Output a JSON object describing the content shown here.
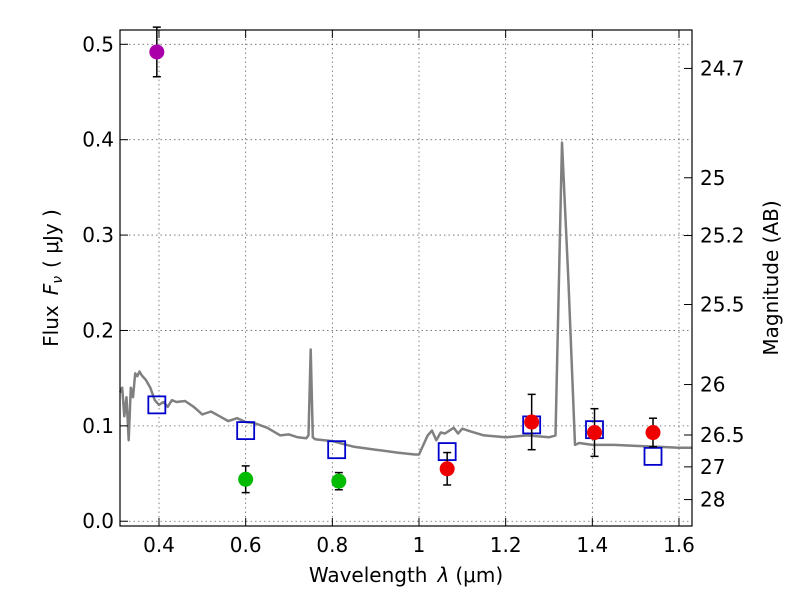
{
  "chart_data": {
    "type": "scatter",
    "xlabel": "Wavelength",
    "xlabel_symbol": "λ",
    "xlabel_unit": "(μm)",
    "ylabel": "Flux",
    "ylabel_symbol": "F",
    "ylabel_sub": "ν",
    "ylabel_unit": "( μJy )",
    "y2label": "Magnitude (AB)",
    "xlim": [
      0.31,
      1.63
    ],
    "ylim": [
      -0.005,
      0.515
    ],
    "grid": true,
    "x_ticks": [
      0.4,
      0.6,
      0.8,
      1.0,
      1.2,
      1.4,
      1.6
    ],
    "x_tick_labels": [
      "0.4",
      "0.6",
      "0.8",
      "1",
      "1.2",
      "1.4",
      "1.6"
    ],
    "y_ticks": [
      0.0,
      0.1,
      0.2,
      0.3,
      0.4,
      0.5
    ],
    "y_tick_labels": [
      "0.0",
      "0.1",
      "0.2",
      "0.3",
      "0.4",
      "0.5"
    ],
    "y2_ticks": [
      {
        "label": "24.7",
        "flux": 0.4747
      },
      {
        "label": "25",
        "flux": 0.3601
      },
      {
        "label": "25.2",
        "flux": 0.2995
      },
      {
        "label": "25.5",
        "flux": 0.2272
      },
      {
        "label": "26",
        "flux": 0.1433
      },
      {
        "label": "26.5",
        "flux": 0.0904
      },
      {
        "label": "27",
        "flux": 0.057
      },
      {
        "label": "28",
        "flux": 0.0227
      }
    ],
    "series": [
      {
        "name": "Model SED",
        "kind": "line",
        "color": "#808080",
        "x": [
          0.31,
          0.315,
          0.32,
          0.325,
          0.33,
          0.335,
          0.34,
          0.345,
          0.35,
          0.355,
          0.36,
          0.37,
          0.38,
          0.39,
          0.4,
          0.41,
          0.42,
          0.43,
          0.44,
          0.46,
          0.48,
          0.5,
          0.52,
          0.54,
          0.56,
          0.58,
          0.6,
          0.62,
          0.65,
          0.68,
          0.7,
          0.72,
          0.74,
          0.745,
          0.75,
          0.755,
          0.76,
          0.8,
          0.85,
          0.9,
          0.95,
          0.99,
          1.0,
          1.02,
          1.03,
          1.04,
          1.05,
          1.06,
          1.08,
          1.09,
          1.1,
          1.12,
          1.15,
          1.2,
          1.25,
          1.3,
          1.315,
          1.33,
          1.345,
          1.36,
          1.37,
          1.4,
          1.45,
          1.5,
          1.55,
          1.6,
          1.63
        ],
        "y": [
          0.135,
          0.14,
          0.11,
          0.13,
          0.085,
          0.14,
          0.13,
          0.155,
          0.152,
          0.157,
          0.153,
          0.148,
          0.14,
          0.127,
          0.122,
          0.125,
          0.12,
          0.127,
          0.125,
          0.126,
          0.12,
          0.112,
          0.115,
          0.11,
          0.105,
          0.108,
          0.104,
          0.103,
          0.098,
          0.09,
          0.091,
          0.088,
          0.087,
          0.09,
          0.18,
          0.088,
          0.086,
          0.084,
          0.078,
          0.075,
          0.072,
          0.07,
          0.07,
          0.09,
          0.095,
          0.085,
          0.093,
          0.092,
          0.098,
          0.092,
          0.097,
          0.094,
          0.09,
          0.088,
          0.09,
          0.088,
          0.09,
          0.397,
          0.25,
          0.08,
          0.082,
          0.08,
          0.08,
          0.079,
          0.078,
          0.077,
          0.077
        ]
      },
      {
        "name": "Model photometry",
        "kind": "open-square",
        "color": "#0000cc",
        "x": [
          0.395,
          0.6,
          0.81,
          1.065,
          1.26,
          1.405,
          1.54
        ],
        "y": [
          0.122,
          0.095,
          0.075,
          0.073,
          0.101,
          0.096,
          0.068
        ]
      },
      {
        "name": "Detections",
        "kind": "filled-circle",
        "color": "#ee0000",
        "x": [
          1.065,
          1.26,
          1.405,
          1.54
        ],
        "y": [
          0.055,
          0.104,
          0.093,
          0.093
        ],
        "err": [
          0.017,
          0.029,
          0.025,
          0.015
        ]
      },
      {
        "name": "Green points",
        "kind": "filled-circle",
        "color": "#00bb00",
        "x": [
          0.6,
          0.815
        ],
        "y": [
          0.044,
          0.042
        ],
        "err": [
          0.014,
          0.009
        ]
      },
      {
        "name": "Purple point",
        "kind": "filled-circle",
        "color": "#aa00aa",
        "x": [
          0.395
        ],
        "y": [
          0.492
        ],
        "err": [
          0.026
        ]
      }
    ]
  }
}
